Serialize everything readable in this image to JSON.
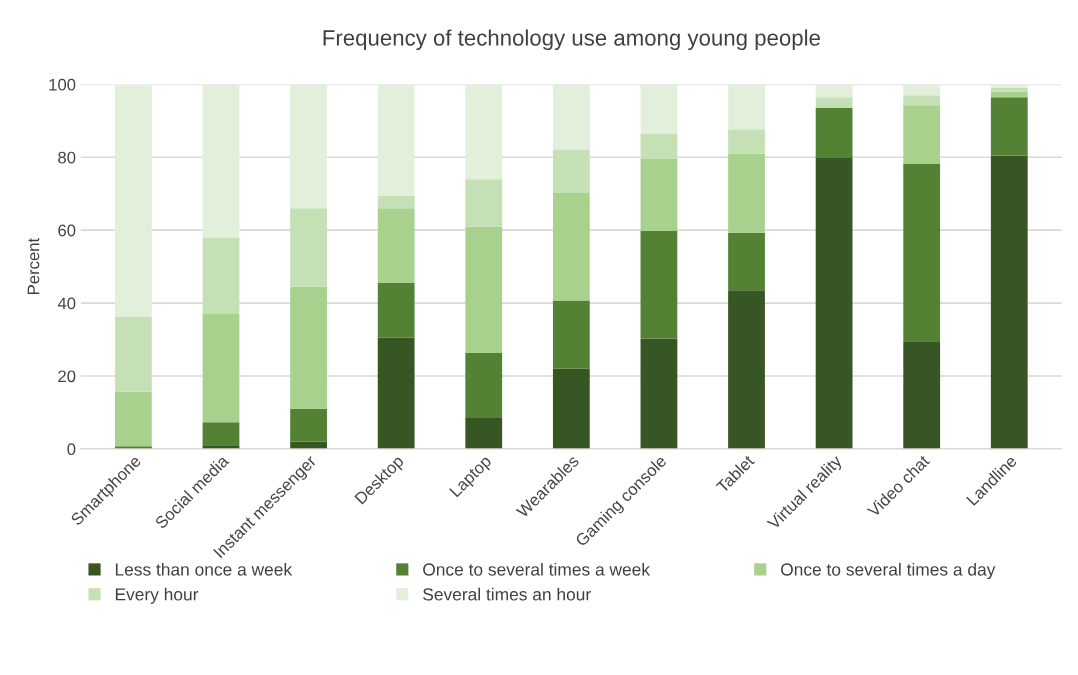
{
  "chart_data": {
    "type": "bar",
    "title": "Frequency of technology use among young people",
    "ylabel": "Percent",
    "stacked": true,
    "categories": [
      "Smartphone",
      "Social media",
      "Instant messenger",
      "Desktop",
      "Laptop",
      "Wearables",
      "Gaming console",
      "Tablet",
      "Virtual reality",
      "Video chat",
      "Landline"
    ],
    "series": [
      {
        "name": "Less than once a week",
        "color": "#375623",
        "values": [
          null,
          1,
          2,
          30.5,
          8.5,
          22,
          30.3,
          43.5,
          80,
          29.5,
          80.5
        ]
      },
      {
        "name": "Once to several times a week",
        "color": "#548235",
        "values": [
          0.7,
          6.3,
          9,
          15,
          17.8,
          18.7,
          29.5,
          15.8,
          13.5,
          48.8,
          16
        ]
      },
      {
        "name": "Once to several times a day",
        "color": "#a9d18e",
        "values": [
          15,
          29.7,
          33.5,
          20.5,
          34.7,
          29.5,
          19.7,
          21.7,
          0,
          16,
          1.5
        ]
      },
      {
        "name": "Every hour",
        "color": "#c5e0b4",
        "values": [
          20.5,
          21,
          21.5,
          3.5,
          13,
          11.8,
          7,
          6.7,
          3,
          2.7,
          1
        ]
      },
      {
        "name": "Several times an hour",
        "color": "#e2efda",
        "values": [
          63.5,
          42,
          34,
          30.5,
          26,
          18,
          13.5,
          12.3,
          3.5,
          3,
          1
        ]
      }
    ],
    "ylim": [
      0,
      100
    ],
    "yticks": [
      0,
      20,
      40,
      60,
      80,
      100
    ],
    "grid": "y",
    "legend": "bottom"
  }
}
